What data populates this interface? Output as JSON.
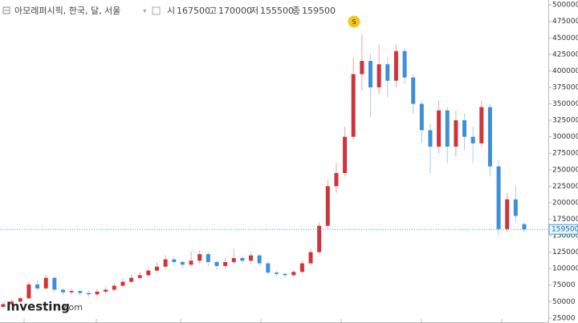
{
  "chart_data": {
    "type": "candlestick",
    "title": "아모레퍼시픽, 한국, 달, 서울",
    "ohlc_labels": [
      "시",
      "고",
      "저",
      "종"
    ],
    "event_marker": "S",
    "logo": [
      "Investing",
      ".com"
    ],
    "up_color": "#d0343a",
    "down_color": "#3f8fd8",
    "open": [
      42000,
      46000,
      50000,
      55000,
      76000,
      70000,
      86000,
      68000,
      64000,
      66000,
      63000,
      61000,
      65000,
      68000,
      74000,
      80000,
      86000,
      90000,
      97000,
      103000,
      114000,
      110000,
      106000,
      112000,
      122000,
      110000,
      104000,
      110000,
      116000,
      112000,
      120000,
      108000,
      94000,
      92000,
      90000,
      95000,
      108000,
      125000,
      165000,
      225000,
      245000,
      300000,
      395000,
      415000,
      375000,
      410000,
      385000,
      430000,
      390000,
      350000,
      310000,
      285000,
      340000,
      285000,
      325000,
      300000,
      290000,
      345000,
      255000,
      160000,
      205000,
      167500
    ],
    "high": [
      49000,
      53000,
      58000,
      80000,
      82000,
      90000,
      88000,
      70000,
      70000,
      68000,
      66000,
      69000,
      72000,
      78000,
      85000,
      91000,
      95000,
      102000,
      110000,
      120000,
      118000,
      113000,
      126000,
      128000,
      125000,
      113000,
      116000,
      130000,
      120000,
      125000,
      122000,
      110000,
      97000,
      94000,
      98000,
      112000,
      130000,
      170000,
      235000,
      260000,
      315000,
      420000,
      455000,
      425000,
      440000,
      420000,
      440000,
      435000,
      395000,
      355000,
      320000,
      355000,
      345000,
      340000,
      335000,
      315000,
      355000,
      350000,
      265000,
      215000,
      225000,
      170000
    ],
    "low": [
      40000,
      44000,
      48000,
      53000,
      66000,
      68000,
      65000,
      60000,
      61000,
      59000,
      57000,
      58000,
      62000,
      66000,
      72000,
      78000,
      83000,
      87000,
      94000,
      100000,
      105000,
      100000,
      103000,
      108000,
      104000,
      98000,
      100000,
      107000,
      108000,
      108000,
      104000,
      90000,
      88000,
      86000,
      87000,
      93000,
      105000,
      122000,
      160000,
      215000,
      240000,
      295000,
      370000,
      330000,
      365000,
      360000,
      375000,
      380000,
      335000,
      290000,
      245000,
      275000,
      260000,
      270000,
      280000,
      260000,
      285000,
      240000,
      150000,
      155000,
      170000,
      155500
    ],
    "close": [
      46000,
      50000,
      55000,
      76000,
      70000,
      86000,
      68000,
      64000,
      66000,
      63000,
      61000,
      65000,
      68000,
      74000,
      80000,
      86000,
      90000,
      97000,
      103000,
      114000,
      110000,
      106000,
      112000,
      122000,
      110000,
      104000,
      110000,
      116000,
      112000,
      120000,
      108000,
      94000,
      92000,
      90000,
      95000,
      108000,
      125000,
      165000,
      225000,
      245000,
      300000,
      395000,
      415000,
      375000,
      410000,
      385000,
      430000,
      390000,
      350000,
      310000,
      285000,
      340000,
      285000,
      325000,
      300000,
      290000,
      345000,
      255000,
      160000,
      205000,
      180000,
      159500
    ],
    "ylim": [
      17500,
      507500
    ],
    "yticks": [
      25000,
      50000,
      75000,
      100000,
      125000,
      150000,
      175000,
      200000,
      225000,
      250000,
      275000,
      300000,
      325000,
      350000,
      375000,
      400000,
      425000,
      450000,
      475000,
      500000
    ]
  }
}
